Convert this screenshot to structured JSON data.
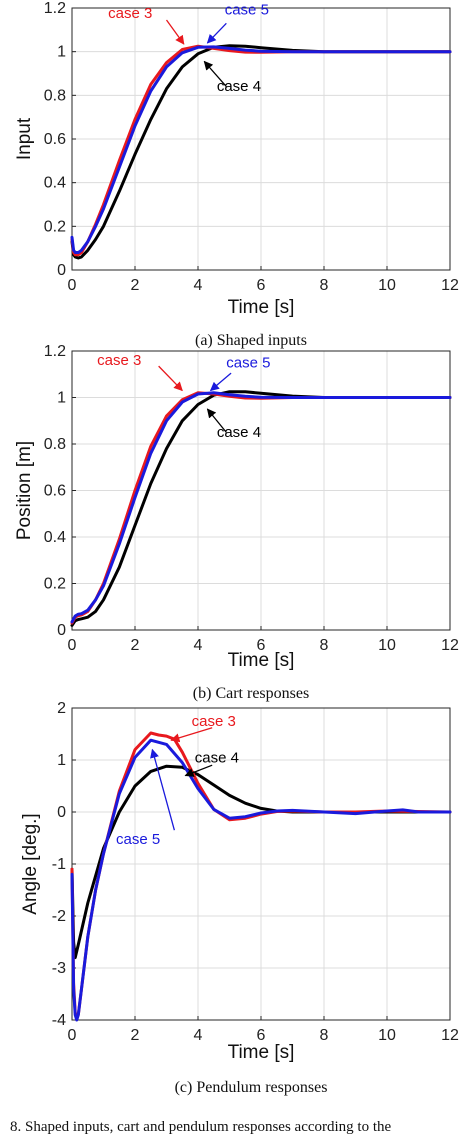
{
  "colors": {
    "case3": "#e8191e",
    "case4": "#000000",
    "case5": "#1a1adc",
    "grid": "#dcdcdc",
    "axis": "#262626"
  },
  "footer": {
    "text": "8. Shaped inputs, cart and pendulum responses according to the"
  },
  "chart_data": [
    {
      "type": "line",
      "caption": "(a) Shaped inputs",
      "xlabel": "Time [s]",
      "ylabel": "Input",
      "xlim": [
        0,
        12
      ],
      "ylim": [
        0,
        1.2
      ],
      "xticks": [
        0,
        2,
        4,
        6,
        8,
        10,
        12
      ],
      "yticks": [
        0,
        0.2,
        0.4,
        0.6,
        0.8,
        1,
        1.2
      ],
      "ytick_labels": [
        "0",
        "0.2",
        "0.4",
        "0.6",
        "0.8",
        "1",
        "1.2"
      ],
      "grid": true,
      "series": [
        {
          "name": "case 4",
          "color": "#000000",
          "x": [
            0,
            0.05,
            0.1,
            0.2,
            0.3,
            0.5,
            0.75,
            1,
            1.5,
            2,
            2.5,
            3,
            3.5,
            4,
            4.5,
            5,
            5.5,
            6,
            7,
            8,
            9,
            12
          ],
          "y": [
            0.13,
            0.07,
            0.06,
            0.055,
            0.06,
            0.09,
            0.14,
            0.2,
            0.36,
            0.53,
            0.69,
            0.83,
            0.93,
            0.99,
            1.02,
            1.027,
            1.025,
            1.018,
            1.006,
            1.0,
            1.0,
            1.0
          ]
        },
        {
          "name": "case 3",
          "color": "#e8191e",
          "x": [
            0,
            0.05,
            0.1,
            0.2,
            0.3,
            0.5,
            0.75,
            1,
            1.5,
            2,
            2.5,
            3,
            3.5,
            4,
            4.5,
            5,
            5.5,
            6,
            7,
            8,
            12
          ],
          "y": [
            0.14,
            0.08,
            0.07,
            0.07,
            0.08,
            0.13,
            0.21,
            0.3,
            0.5,
            0.69,
            0.85,
            0.95,
            1.01,
            1.025,
            1.015,
            1.005,
            0.998,
            0.997,
            1.0,
            1.0,
            1.0
          ]
        },
        {
          "name": "case 5",
          "color": "#1a1adc",
          "x": [
            0,
            0.05,
            0.1,
            0.2,
            0.3,
            0.5,
            0.75,
            1,
            1.5,
            2,
            2.5,
            3,
            3.5,
            4,
            4.5,
            5,
            5.5,
            6,
            7,
            8,
            12
          ],
          "y": [
            0.15,
            0.09,
            0.08,
            0.08,
            0.09,
            0.13,
            0.2,
            0.28,
            0.47,
            0.66,
            0.82,
            0.93,
            0.995,
            1.02,
            1.022,
            1.015,
            1.007,
            1.002,
            1.0,
            1.0,
            1.0
          ]
        }
      ],
      "annotations": [
        {
          "text": "case 3",
          "color": "#e8191e",
          "tx": 1.85,
          "ty": 1.155,
          "ax": 3.0,
          "ay": 1.145,
          "bx": 3.55,
          "by": 1.035
        },
        {
          "text": "case 5",
          "color": "#1a1adc",
          "tx": 5.55,
          "ty": 1.17,
          "ax": 4.9,
          "ay": 1.13,
          "bx": 4.3,
          "by": 1.04
        },
        {
          "text": "case 4",
          "color": "#000000",
          "tx": 5.3,
          "ty": 0.82,
          "ax": 4.9,
          "ay": 0.84,
          "bx": 4.2,
          "by": 0.955
        }
      ]
    },
    {
      "type": "line",
      "caption": "(b) Cart responses",
      "xlabel": "Time [s]",
      "ylabel": "Position [m]",
      "xlim": [
        0,
        12
      ],
      "ylim": [
        0,
        1.2
      ],
      "xticks": [
        0,
        2,
        4,
        6,
        8,
        10,
        12
      ],
      "yticks": [
        0,
        0.2,
        0.4,
        0.6,
        0.8,
        1,
        1.2
      ],
      "ytick_labels": [
        "0",
        "0.2",
        "0.4",
        "0.6",
        "0.8",
        "1",
        "1.2"
      ],
      "grid": true,
      "series": [
        {
          "name": "case 4",
          "color": "#000000",
          "x": [
            0,
            0.1,
            0.2,
            0.3,
            0.5,
            0.75,
            1,
            1.5,
            2,
            2.5,
            3,
            3.5,
            4,
            4.5,
            5,
            5.5,
            6,
            7,
            8,
            9,
            12
          ],
          "y": [
            0.02,
            0.04,
            0.045,
            0.048,
            0.055,
            0.08,
            0.13,
            0.27,
            0.45,
            0.63,
            0.78,
            0.9,
            0.97,
            1.01,
            1.025,
            1.025,
            1.018,
            1.006,
            1.0,
            1.0,
            1.0
          ]
        },
        {
          "name": "case 3",
          "color": "#e8191e",
          "x": [
            0,
            0.1,
            0.2,
            0.3,
            0.5,
            0.75,
            1,
            1.5,
            2,
            2.5,
            3,
            3.5,
            4,
            4.5,
            5,
            5.5,
            6,
            7,
            8,
            12
          ],
          "y": [
            0.03,
            0.055,
            0.062,
            0.065,
            0.08,
            0.13,
            0.2,
            0.39,
            0.6,
            0.79,
            0.92,
            0.99,
            1.02,
            1.015,
            1.005,
            0.998,
            0.997,
            1.0,
            1.0,
            1.0
          ]
        },
        {
          "name": "case 5",
          "color": "#1a1adc",
          "x": [
            0,
            0.1,
            0.2,
            0.3,
            0.5,
            0.75,
            1,
            1.5,
            2,
            2.5,
            3,
            3.5,
            4,
            4.5,
            5,
            5.5,
            6,
            7,
            8,
            12
          ],
          "y": [
            0.035,
            0.06,
            0.068,
            0.07,
            0.085,
            0.13,
            0.19,
            0.37,
            0.57,
            0.76,
            0.9,
            0.98,
            1.015,
            1.02,
            1.012,
            1.005,
            1.001,
            1.0,
            1.0,
            1.0
          ]
        }
      ],
      "annotations": [
        {
          "text": "case 3",
          "color": "#e8191e",
          "tx": 1.5,
          "ty": 1.14,
          "ax": 2.75,
          "ay": 1.135,
          "bx": 3.5,
          "by": 1.03
        },
        {
          "text": "case 5",
          "color": "#1a1adc",
          "tx": 5.6,
          "ty": 1.13,
          "ax": 5.05,
          "ay": 1.105,
          "bx": 4.4,
          "by": 1.03
        },
        {
          "text": "case 4",
          "color": "#000000",
          "tx": 5.3,
          "ty": 0.83,
          "ax": 4.9,
          "ay": 0.85,
          "bx": 4.3,
          "by": 0.95
        }
      ]
    },
    {
      "type": "line",
      "caption": "(c) Pendulum responses",
      "xlabel": "Time [s]",
      "ylabel": "Angle [deg.]",
      "xlim": [
        0,
        12
      ],
      "ylim": [
        -4,
        2
      ],
      "xticks": [
        0,
        2,
        4,
        6,
        8,
        10,
        12
      ],
      "yticks": [
        -4,
        -3,
        -2,
        -1,
        0,
        1,
        2
      ],
      "ytick_labels": [
        "-4",
        "-3",
        "-2",
        "-1",
        "0",
        "1",
        "2"
      ],
      "grid": true,
      "series": [
        {
          "name": "case 4",
          "color": "#000000",
          "x": [
            0,
            0.05,
            0.1,
            0.2,
            0.5,
            1,
            1.5,
            2,
            2.5,
            3,
            3.5,
            4,
            4.5,
            5,
            5.5,
            6,
            6.5,
            7,
            8,
            9,
            10,
            11,
            12
          ],
          "y": [
            -1.1,
            -2.5,
            -2.8,
            -2.55,
            -1.75,
            -0.7,
            0.0,
            0.5,
            0.78,
            0.88,
            0.86,
            0.72,
            0.52,
            0.32,
            0.17,
            0.07,
            0.02,
            0.0,
            0.0,
            0.0,
            0.0,
            0.0,
            0.0
          ]
        },
        {
          "name": "case 3",
          "color": "#e8191e",
          "x": [
            0,
            0.05,
            0.1,
            0.15,
            0.2,
            0.3,
            0.5,
            0.75,
            1,
            1.5,
            2,
            2.5,
            2.75,
            3,
            3.25,
            3.5,
            4,
            4.5,
            5,
            5.5,
            6,
            6.5,
            7,
            7.5,
            8,
            9,
            10,
            11,
            12
          ],
          "y": [
            -1.1,
            -3.3,
            -3.85,
            -3.97,
            -3.9,
            -3.4,
            -2.4,
            -1.5,
            -0.8,
            0.4,
            1.2,
            1.52,
            1.48,
            1.46,
            1.4,
            1.15,
            0.55,
            0.05,
            -0.15,
            -0.12,
            -0.04,
            0.01,
            0.02,
            0.01,
            0.0,
            0.0,
            0.02,
            0.01,
            0.0
          ]
        },
        {
          "name": "case 5",
          "color": "#1a1adc",
          "x": [
            0,
            0.05,
            0.1,
            0.15,
            0.2,
            0.3,
            0.5,
            0.75,
            1,
            1.5,
            2,
            2.5,
            3,
            3.5,
            4,
            4.5,
            5,
            5.5,
            6,
            6.5,
            7,
            8,
            9,
            10,
            10.5,
            11,
            12
          ],
          "y": [
            -1.2,
            -3.4,
            -3.9,
            -4.0,
            -3.9,
            -3.4,
            -2.4,
            -1.5,
            -0.8,
            0.35,
            1.05,
            1.38,
            1.3,
            0.95,
            0.45,
            0.05,
            -0.12,
            -0.09,
            -0.02,
            0.02,
            0.03,
            0.0,
            -0.03,
            0.02,
            0.04,
            0.0,
            0.0
          ]
        }
      ],
      "annotations": [
        {
          "text": "case 3",
          "color": "#e8191e",
          "tx": 4.5,
          "ty": 1.65,
          "ax": 4.45,
          "ay": 1.62,
          "bx": 3.15,
          "by": 1.38
        },
        {
          "text": "case 4",
          "color": "#000000",
          "tx": 4.6,
          "ty": 0.95,
          "ax": 4.45,
          "ay": 0.9,
          "bx": 3.6,
          "by": 0.7
        },
        {
          "text": "case 5",
          "color": "#1a1adc",
          "tx": 2.1,
          "ty": -0.62,
          "ax": 3.25,
          "ay": -0.35,
          "bx": 2.55,
          "by": 1.2
        }
      ]
    }
  ]
}
